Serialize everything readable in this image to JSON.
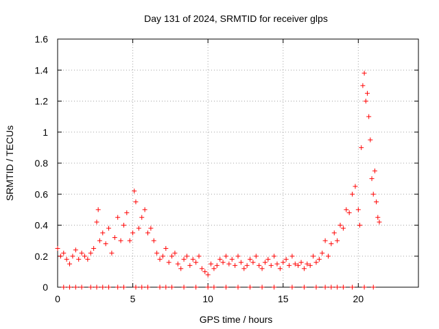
{
  "chart_data": {
    "type": "scatter",
    "title": "Day 131 of 2024, SRMTID for receiver glps",
    "xlabel": "GPS time / hours",
    "ylabel": "SRMTID / TECUs",
    "xlim": [
      0,
      24
    ],
    "ylim": [
      0,
      1.6
    ],
    "xticks": [
      0,
      5,
      10,
      15,
      20
    ],
    "xtick_labels": [
      "0",
      "5",
      "10",
      "15",
      "20"
    ],
    "yticks": [
      0,
      0.2,
      0.4,
      0.6,
      0.8,
      1.0,
      1.2,
      1.4,
      1.6
    ],
    "ytick_labels": [
      "0",
      "0.2",
      "0.4",
      "0.6",
      "0.8",
      "1",
      "1.2",
      "1.4",
      "1.6"
    ],
    "grid": true,
    "marker": "plus",
    "color": "#ff0000",
    "series": [
      {
        "name": "SRMTID",
        "x": [
          0.0,
          0.2,
          0.4,
          0.6,
          0.8,
          1.0,
          1.2,
          1.4,
          1.6,
          1.8,
          2.0,
          2.2,
          2.4,
          2.6,
          2.7,
          2.8,
          3.0,
          3.2,
          3.4,
          3.6,
          3.8,
          4.0,
          4.2,
          4.4,
          4.6,
          4.8,
          5.0,
          5.1,
          5.2,
          5.4,
          5.6,
          5.8,
          6.0,
          6.2,
          6.4,
          6.6,
          6.8,
          7.0,
          7.2,
          7.4,
          7.6,
          7.8,
          8.0,
          8.2,
          8.4,
          8.6,
          8.8,
          9.0,
          9.2,
          9.4,
          9.6,
          9.8,
          10.0,
          10.2,
          10.4,
          10.6,
          10.8,
          11.0,
          11.2,
          11.4,
          11.6,
          11.8,
          12.0,
          12.2,
          12.4,
          12.6,
          12.8,
          13.0,
          13.2,
          13.4,
          13.6,
          13.8,
          14.0,
          14.2,
          14.4,
          14.6,
          14.8,
          15.0,
          15.2,
          15.4,
          15.6,
          15.8,
          16.0,
          16.2,
          16.4,
          16.6,
          16.8,
          17.0,
          17.2,
          17.4,
          17.6,
          17.8,
          18.0,
          18.2,
          18.4,
          18.6,
          18.8,
          19.0,
          19.2,
          19.4,
          19.6,
          19.8,
          20.0,
          20.1,
          20.2,
          20.3,
          20.4,
          20.5,
          20.6,
          20.7,
          20.8,
          20.9,
          21.0,
          21.1,
          21.2,
          21.3,
          21.4
        ],
        "y": [
          0.25,
          0.2,
          0.22,
          0.18,
          0.15,
          0.2,
          0.24,
          0.18,
          0.22,
          0.2,
          0.18,
          0.22,
          0.25,
          0.42,
          0.5,
          0.3,
          0.35,
          0.28,
          0.38,
          0.22,
          0.32,
          0.45,
          0.3,
          0.4,
          0.48,
          0.3,
          0.35,
          0.62,
          0.55,
          0.38,
          0.45,
          0.5,
          0.35,
          0.38,
          0.3,
          0.22,
          0.18,
          0.2,
          0.25,
          0.16,
          0.2,
          0.22,
          0.15,
          0.12,
          0.18,
          0.2,
          0.14,
          0.18,
          0.16,
          0.2,
          0.12,
          0.1,
          0.08,
          0.15,
          0.12,
          0.14,
          0.18,
          0.16,
          0.2,
          0.15,
          0.18,
          0.14,
          0.2,
          0.16,
          0.12,
          0.14,
          0.18,
          0.16,
          0.2,
          0.14,
          0.12,
          0.16,
          0.18,
          0.14,
          0.2,
          0.15,
          0.12,
          0.16,
          0.18,
          0.14,
          0.2,
          0.15,
          0.14,
          0.16,
          0.12,
          0.15,
          0.14,
          0.2,
          0.16,
          0.18,
          0.22,
          0.3,
          0.2,
          0.28,
          0.35,
          0.3,
          0.4,
          0.38,
          0.5,
          0.48,
          0.6,
          0.65,
          0.5,
          0.4,
          0.9,
          1.3,
          1.38,
          1.2,
          1.25,
          1.1,
          0.95,
          0.7,
          0.6,
          0.75,
          0.55,
          0.45,
          0.42
        ],
        "baseline_x": [
          0.4,
          0.8,
          1.2,
          1.6,
          2.2,
          2.6,
          3.0,
          3.4,
          4.0,
          4.4,
          5.2,
          5.6,
          6.0,
          6.8,
          7.2,
          7.6,
          8.4,
          9.2,
          10.0,
          10.4,
          11.2,
          12.0,
          12.8,
          13.6,
          14.4,
          15.6,
          16.4,
          17.2,
          17.8,
          18.2,
          18.6,
          19.0,
          19.6,
          20.4,
          21.0
        ]
      }
    ]
  }
}
